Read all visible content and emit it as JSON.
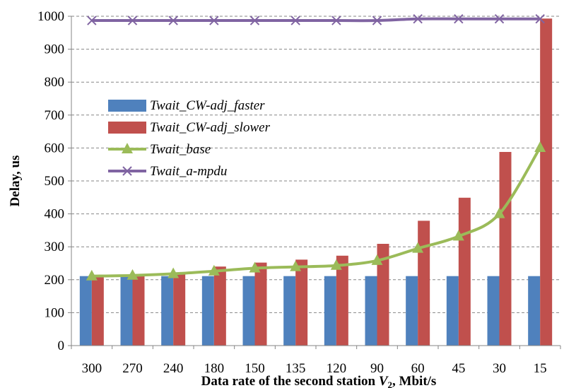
{
  "chart_data": {
    "type": "bar",
    "categories": [
      "300",
      "270",
      "240",
      "180",
      "150",
      "135",
      "120",
      "90",
      "60",
      "45",
      "30",
      "15"
    ],
    "series": [
      {
        "name": "Twait_CW-adj_faster",
        "type": "bar",
        "color": "#4F81BD",
        "values": [
          211,
          211,
          211,
          211,
          211,
          211,
          211,
          211,
          211,
          211,
          211,
          211
        ]
      },
      {
        "name": "Twait_CW-adj_slower",
        "type": "bar",
        "color": "#C0504D",
        "values": [
          211,
          212,
          218,
          240,
          252,
          261,
          273,
          309,
          379,
          449,
          588,
          993
        ]
      },
      {
        "name": "Twait_base",
        "type": "line",
        "marker": "triangle",
        "color": "#9BBB59",
        "values": [
          211,
          213,
          218,
          226,
          235,
          239,
          243,
          258,
          295,
          332,
          400,
          601
        ]
      },
      {
        "name": "Twait_a-mpdu",
        "type": "line",
        "marker": "x",
        "color": "#8064A2",
        "values": [
          987,
          987,
          987,
          987,
          987,
          987,
          987,
          987,
          992,
          992,
          992,
          992
        ]
      }
    ],
    "ylabel": "Delay, us",
    "xlabel_main": "Data rate of the  second station ",
    "xlabel_var": "V",
    "xlabel_sub": "2",
    "xlabel_unit": ", Mbit/s",
    "ylim": [
      0,
      1000
    ],
    "yticks": [
      "0",
      "100",
      "200",
      "300",
      "400",
      "500",
      "600",
      "700",
      "800",
      "900",
      "1000"
    ],
    "grid": true,
    "legend_position": "left"
  }
}
